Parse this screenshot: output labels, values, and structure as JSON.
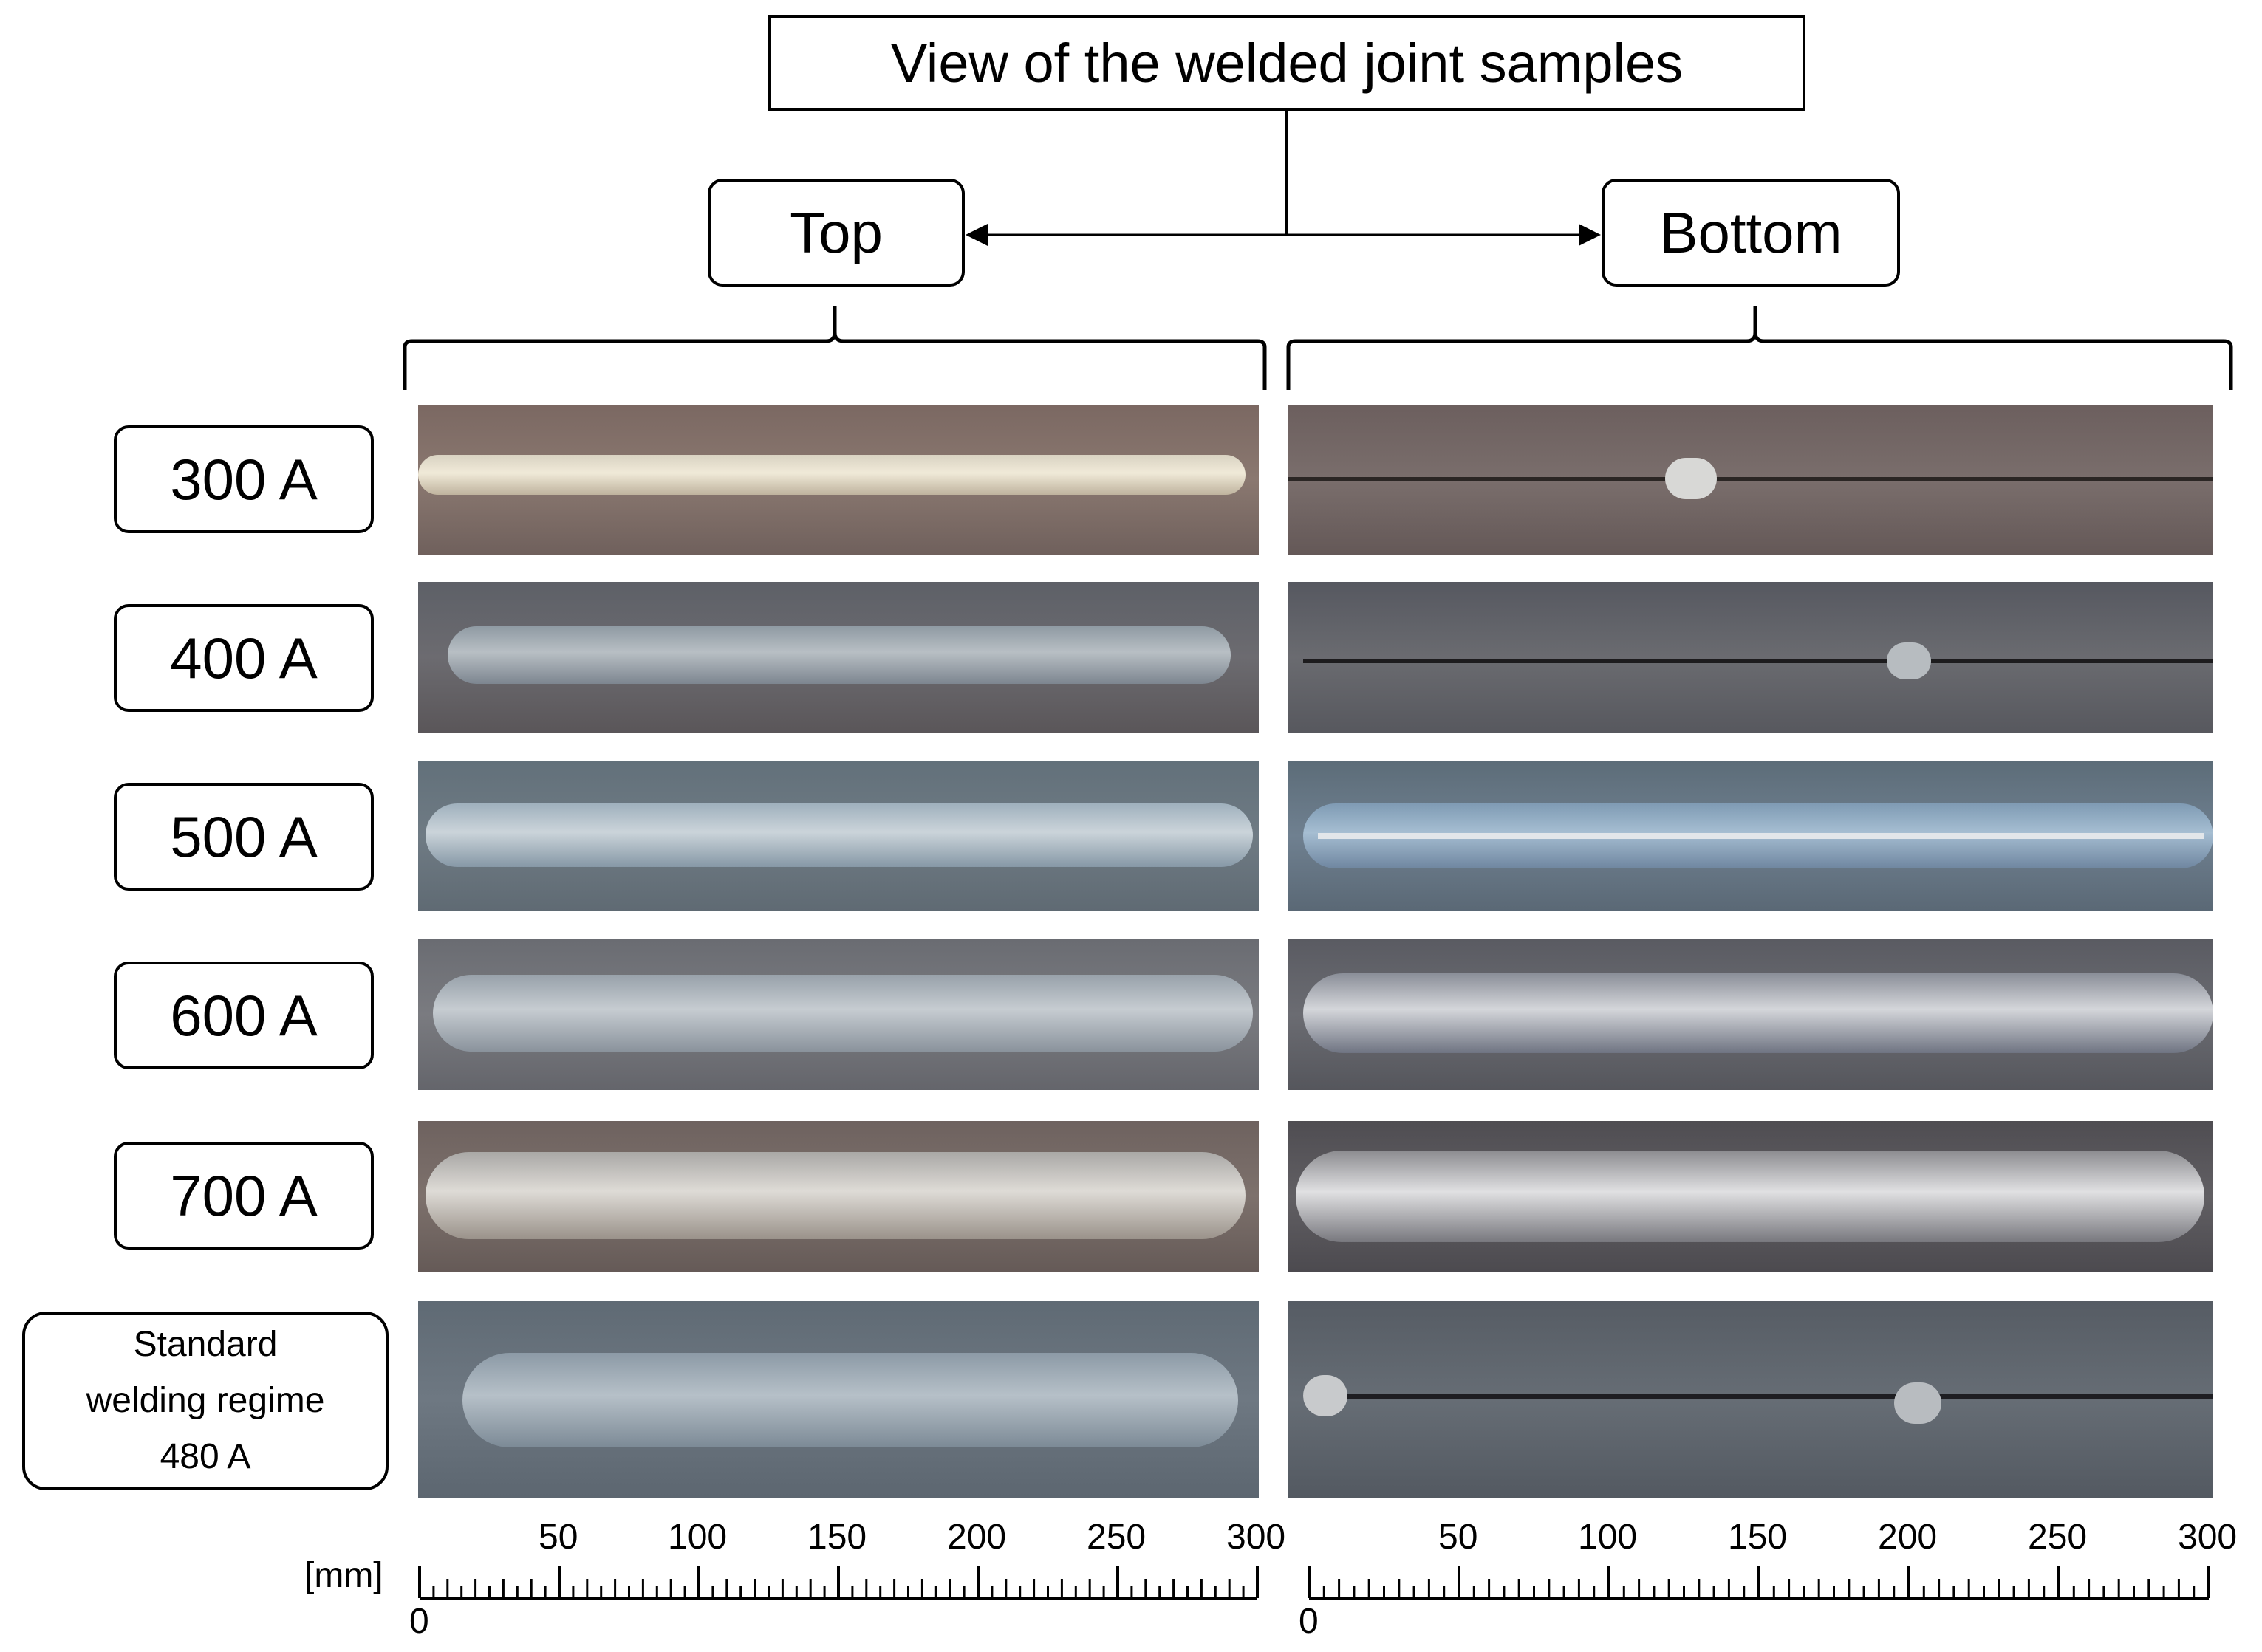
{
  "title": "View of the welded joint samples",
  "sides": {
    "top": "Top",
    "bottom": "Bottom"
  },
  "rows": [
    {
      "label": "300 A"
    },
    {
      "label": "400 A"
    },
    {
      "label": "500 A"
    },
    {
      "label": "600 A"
    },
    {
      "label": "700 A"
    },
    {
      "label_lines": [
        "Standard",
        "welding regime",
        "480 A"
      ]
    }
  ],
  "scale": {
    "unit": "[mm]",
    "zero": "0",
    "ticks": [
      "50",
      "100",
      "150",
      "200",
      "250",
      "300"
    ]
  }
}
